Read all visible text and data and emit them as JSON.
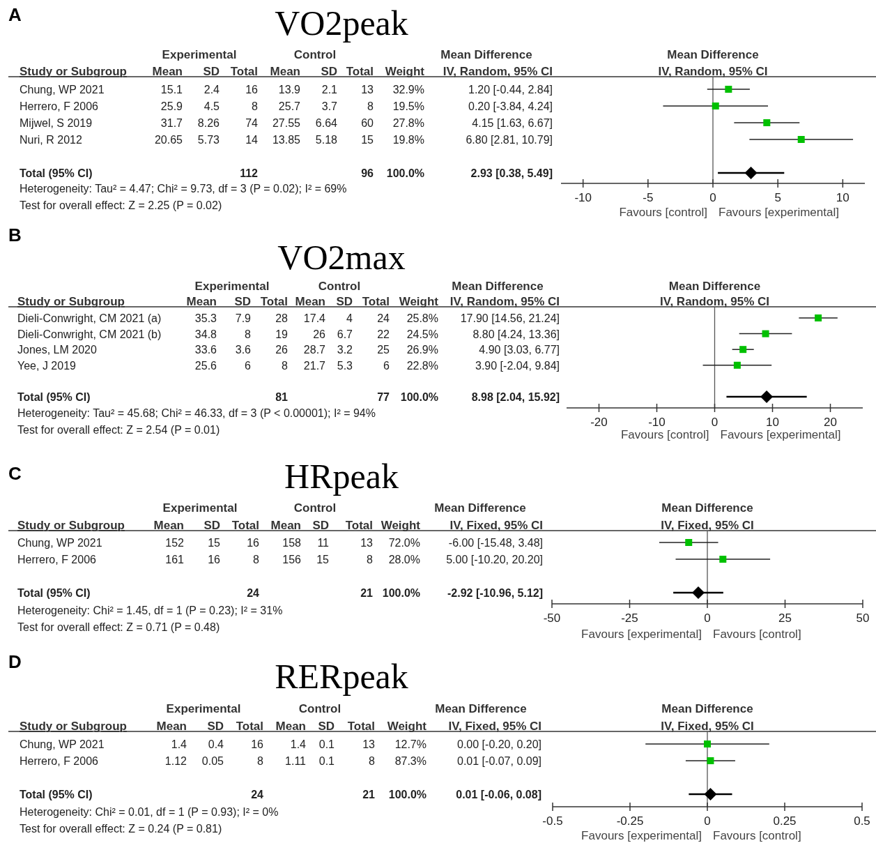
{
  "chart_data": [
    {
      "type": "other",
      "title": "VO2peak",
      "ylabel": "Study or Subgroup",
      "categories": [
        "Mean",
        "SD",
        "Total",
        "Mean",
        "SD",
        "Total",
        "Weight",
        "IV, Random, 95% CI"
      ],
      "y_categories": [
        "Chung, WP 2021",
        "Herrero, F 2006",
        "Mijwel, S 2019",
        "Nuri, R 2012",
        null,
        "Total (95% CI)"
      ],
      "cell_labels": [
        [
          "15.1",
          "2.4",
          "16",
          "13.9",
          "2.1",
          "13",
          "32.9%",
          "1.20 [-0.44, 2.84]"
        ],
        [
          "25.9",
          "4.5",
          "8",
          "25.7",
          "3.7",
          "8",
          "19.5%",
          "0.20 [-3.84, 4.24]"
        ],
        [
          "31.7",
          "8.26",
          "74",
          "27.55",
          "6.64",
          "60",
          "27.8%",
          "4.15 [1.63, 6.67]"
        ],
        [
          "20.65",
          "5.73",
          "14",
          "13.85",
          "5.18",
          "15",
          "19.8%",
          "6.80 [2.81, 10.79]"
        ],
        null,
        [
          null,
          null,
          "112",
          null,
          null,
          "96",
          "100.0%",
          "2.93 [0.38, 5.49]"
        ]
      ],
      "annotations": [
        "A",
        "Experimental",
        "Control",
        "Mean Difference",
        "Heterogeneity: Tau² = 4.47; Chi² = 9.73, df = 3 (P = 0.02); I² = 69%",
        "Test for overall effect: Z = 2.25 (P = 0.02)"
      ]
    },
    {
      "type": "scatter",
      "orientation": "horizontal",
      "tick_labels": "x",
      "categories": [
        null,
        null,
        null,
        null,
        null,
        null
      ],
      "series": [
        {
          "color": "#00c000",
          "marker": "square",
          "values": [
            1.2,
            0.2,
            4.15,
            6.8,
            null,
            null
          ],
          "errors": [
            [
              -0.44,
              2.84
            ],
            [
              -3.84,
              4.24
            ],
            [
              1.63,
              6.67
            ],
            [
              2.81,
              10.79
            ],
            null,
            null
          ]
        },
        {
          "color": "#000000",
          "marker": "diamond",
          "values": [
            null,
            null,
            null,
            null,
            null,
            2.93
          ],
          "errors": [
            null,
            null,
            null,
            null,
            null,
            [
              0.38,
              5.49
            ]
          ]
        }
      ],
      "xlim": [
        -11.7,
        11.7
      ],
      "xticks": [
        -10,
        -5,
        0,
        5,
        10
      ],
      "ref_lines": [
        {
          "axis": "x",
          "value": 0
        }
      ],
      "annotations": [
        "Mean Difference",
        "IV, Random, 95% CI",
        "Favours [control]",
        "Favours [experimental]"
      ]
    },
    {
      "type": "other",
      "title": "VO2max",
      "ylabel": "Study or Subgroup",
      "categories": [
        "Mean",
        "SD",
        "Total",
        "Mean",
        "SD",
        "Total",
        "Weight",
        "IV, Random, 95% CI"
      ],
      "y_categories": [
        "Dieli-Conwright, CM 2021 (a)",
        "Dieli-Conwright, CM 2021 (b)",
        "Jones, LM 2020",
        "Yee, J 2019",
        null,
        "Total (95% CI)"
      ],
      "cell_labels": [
        [
          "35.3",
          "7.9",
          "28",
          "17.4",
          "4",
          "24",
          "25.8%",
          "17.90 [14.56, 21.24]"
        ],
        [
          "34.8",
          "8",
          "19",
          "26",
          "6.7",
          "22",
          "24.5%",
          "8.80 [4.24, 13.36]"
        ],
        [
          "33.6",
          "3.6",
          "26",
          "28.7",
          "3.2",
          "25",
          "26.9%",
          "4.90 [3.03, 6.77]"
        ],
        [
          "25.6",
          "6",
          "8",
          "21.7",
          "5.3",
          "6",
          "22.8%",
          "3.90 [-2.04, 9.84]"
        ],
        null,
        [
          null,
          null,
          "81",
          null,
          null,
          "77",
          "100.0%",
          "8.98 [2.04, 15.92]"
        ]
      ],
      "annotations": [
        "B",
        "Experimental",
        "Control",
        "Mean Difference",
        "Heterogeneity: Tau² = 45.68; Chi² = 46.33, df = 3 (P < 0.00001); I² = 94%",
        "Test for overall effect: Z = 2.54 (P = 0.01)"
      ]
    },
    {
      "type": "scatter",
      "orientation": "horizontal",
      "tick_labels": "x",
      "categories": [
        null,
        null,
        null,
        null,
        null,
        null
      ],
      "series": [
        {
          "color": "#00c000",
          "marker": "square",
          "values": [
            17.9,
            8.8,
            4.9,
            3.9,
            null,
            null
          ],
          "errors": [
            [
              14.56,
              21.24
            ],
            [
              4.24,
              13.36
            ],
            [
              3.03,
              6.77
            ],
            [
              -2.04,
              9.84
            ],
            null,
            null
          ]
        },
        {
          "color": "#000000",
          "marker": "diamond",
          "values": [
            null,
            null,
            null,
            null,
            null,
            8.98
          ],
          "errors": [
            null,
            null,
            null,
            null,
            null,
            [
              2.04,
              15.92
            ]
          ]
        }
      ],
      "xlim": [
        -25.6,
        25.6
      ],
      "xticks": [
        -20,
        -10,
        0,
        10,
        20
      ],
      "ref_lines": [
        {
          "axis": "x",
          "value": 0
        }
      ],
      "annotations": [
        "Mean Difference",
        "IV, Random, 95% CI",
        "Favours [control]",
        "Favours [experimental]"
      ]
    },
    {
      "type": "other",
      "title": "HRpeak",
      "ylabel": "Study or Subgroup",
      "categories": [
        "Mean",
        "SD",
        "Total",
        "Mean",
        "SD",
        "Total",
        "Weight",
        "IV, Fixed, 95% CI"
      ],
      "y_categories": [
        "Chung, WP 2021",
        "Herrero, F 2006",
        null,
        "Total (95% CI)"
      ],
      "cell_labels": [
        [
          "152",
          "15",
          "16",
          "158",
          "11",
          "13",
          "72.0%",
          "-6.00 [-15.48, 3.48]"
        ],
        [
          "161",
          "16",
          "8",
          "156",
          "15",
          "8",
          "28.0%",
          "5.00 [-10.20, 20.20]"
        ],
        null,
        [
          null,
          null,
          "24",
          null,
          null,
          "21",
          "100.0%",
          "-2.92 [-10.96, 5.12]"
        ]
      ],
      "annotations": [
        "C",
        "Experimental",
        "Control",
        "Mean Difference",
        "Heterogeneity: Chi² = 1.45, df = 1 (P = 0.23); I² = 31%",
        "Test for overall effect: Z = 0.71 (P = 0.48)"
      ]
    },
    {
      "type": "scatter",
      "orientation": "horizontal",
      "tick_labels": "x",
      "categories": [
        null,
        null,
        null,
        null
      ],
      "series": [
        {
          "color": "#00c000",
          "marker": "square",
          "values": [
            -6.0,
            5.0,
            null,
            null
          ],
          "errors": [
            [
              -15.48,
              3.48
            ],
            [
              -10.2,
              20.2
            ],
            null,
            null
          ]
        },
        {
          "color": "#000000",
          "marker": "diamond",
          "values": [
            null,
            null,
            null,
            -2.92
          ],
          "errors": [
            null,
            null,
            null,
            [
              -10.96,
              5.12
            ]
          ]
        }
      ],
      "xlim": [
        -50,
        50
      ],
      "xticks": [
        -50,
        -25,
        0,
        25,
        50
      ],
      "ref_lines": [
        {
          "axis": "x",
          "value": 0
        }
      ],
      "annotations": [
        "Mean Difference",
        "IV, Fixed, 95% CI",
        "Favours [experimental]",
        "Favours [control]"
      ]
    },
    {
      "type": "other",
      "title": "RERpeak",
      "ylabel": "Study or Subgroup",
      "categories": [
        "Mean",
        "SD",
        "Total",
        "Mean",
        "SD",
        "Total",
        "Weight",
        "IV, Fixed, 95% CI"
      ],
      "y_categories": [
        "Chung, WP 2021",
        "Herrero, F 2006",
        null,
        "Total (95% CI)"
      ],
      "cell_labels": [
        [
          "1.4",
          "0.4",
          "16",
          "1.4",
          "0.1",
          "13",
          "12.7%",
          "0.00 [-0.20, 0.20]"
        ],
        [
          "1.12",
          "0.05",
          "8",
          "1.11",
          "0.1",
          "8",
          "87.3%",
          "0.01 [-0.07, 0.09]"
        ],
        null,
        [
          null,
          null,
          "24",
          null,
          null,
          "21",
          "100.0%",
          "0.01 [-0.06, 0.08]"
        ]
      ],
      "annotations": [
        "D",
        "Experimental",
        "Control",
        "Mean Difference",
        "Heterogeneity: Chi² = 0.01, df = 1 (P = 0.93); I² = 0%",
        "Test for overall effect: Z = 0.24 (P = 0.81)"
      ]
    },
    {
      "type": "scatter",
      "orientation": "horizontal",
      "tick_labels": "x",
      "categories": [
        null,
        null,
        null,
        null
      ],
      "series": [
        {
          "color": "#00c000",
          "marker": "square",
          "values": [
            0.0,
            0.01,
            null,
            null
          ],
          "errors": [
            [
              -0.2,
              0.2
            ],
            [
              -0.07,
              0.09
            ],
            null,
            null
          ]
        },
        {
          "color": "#000000",
          "marker": "diamond",
          "values": [
            null,
            null,
            null,
            0.01
          ],
          "errors": [
            null,
            null,
            null,
            [
              -0.06,
              0.08
            ]
          ]
        }
      ],
      "xlim": [
        -0.5,
        0.5
      ],
      "xticks": [
        -0.5,
        -0.25,
        0,
        0.25,
        0.5
      ],
      "ref_lines": [
        {
          "axis": "x",
          "value": 0
        }
      ],
      "annotations": [
        "Mean Difference",
        "IV, Fixed, 95% CI",
        "Favours [experimental]",
        "Favours [control]"
      ]
    }
  ]
}
